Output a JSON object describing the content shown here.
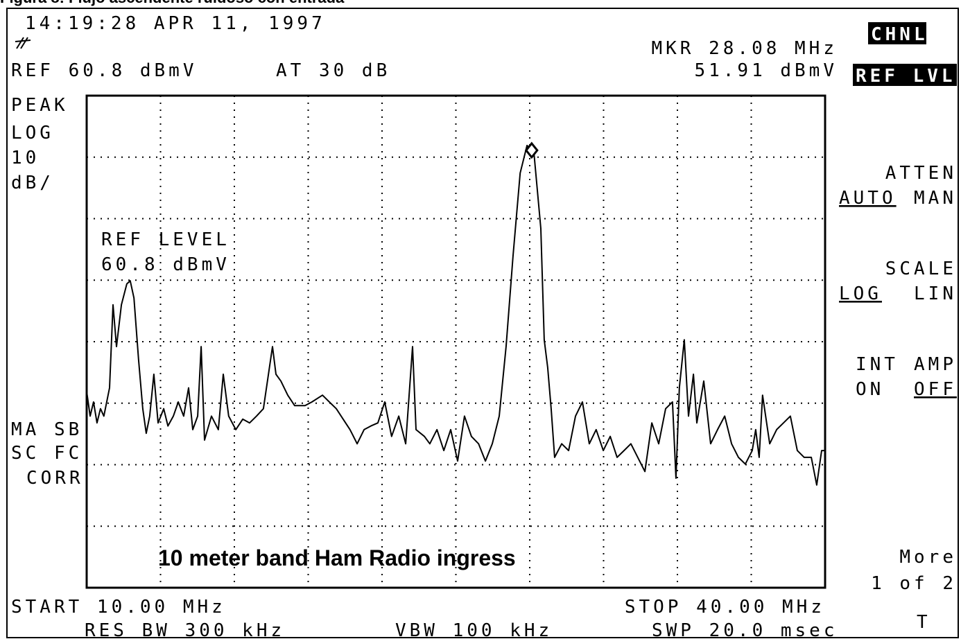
{
  "caption": "Figura 8: Flujo ascendente ruidoso con entrada",
  "screen": {
    "timestamp": "14:19:28 APR 11, 1997",
    "ref": "REF 60.8 dBmV",
    "atten": "AT 30 dB",
    "marker_freq": "MKR 28.08 MHz",
    "marker_level": "51.91 dBmV",
    "left_labels": [
      "PEAK",
      "LOG",
      "10",
      "dB/",
      "MA SB",
      "SC FC",
      "CORR"
    ],
    "softkeys": {
      "chnl": "CHNL",
      "ref_lvl": "REF LVL",
      "atten": "ATTEN",
      "auto": "AUTO",
      "man": "MAN",
      "scale": "SCALE",
      "log": "LOG",
      "lin": "LIN",
      "int": "INT",
      "amp": "AMP",
      "on": "ON",
      "off": "OFF",
      "more": "More",
      "page": "1 of 2",
      "t": "T"
    },
    "start": "START 10.00 MHz",
    "stop": "STOP 40.00 MHz",
    "rbw": "RES BW 300 kHz",
    "vbw": "VBW 100 kHz",
    "sweep": "SWP 20.0 msec"
  },
  "chart_data": {
    "type": "line",
    "color": "#000000",
    "grid": true,
    "xlim": [
      10,
      40
    ],
    "ylim": [
      -19.2,
      60.8
    ],
    "xticks": [
      10,
      13,
      16,
      19,
      22,
      25,
      28,
      31,
      34,
      37,
      40
    ],
    "yticks": [
      -19.2,
      -9.2,
      0.8,
      10.8,
      20.8,
      30.8,
      40.8,
      50.8,
      60.8
    ],
    "annotations": [
      "REF LEVEL",
      "60.8 dBmV",
      "10 meter band Ham Radio ingress"
    ],
    "marker": {
      "x": 28.08,
      "y": 51.91
    },
    "x": [
      10.0,
      10.14,
      10.28,
      10.42,
      10.56,
      10.7,
      10.93,
      11.07,
      11.21,
      11.41,
      11.63,
      11.77,
      11.92,
      12.11,
      12.28,
      12.42,
      12.56,
      12.73,
      12.9,
      13.13,
      13.3,
      13.52,
      13.72,
      13.94,
      14.14,
      14.31,
      14.51,
      14.65,
      14.79,
      15.07,
      15.35,
      15.55,
      15.77,
      16.06,
      16.34,
      16.62,
      16.9,
      17.18,
      17.55,
      17.69,
      17.89,
      18.17,
      18.45,
      18.87,
      19.15,
      19.58,
      19.86,
      20.14,
      20.42,
      20.7,
      20.99,
      21.27,
      21.55,
      21.83,
      22.11,
      22.39,
      22.68,
      22.96,
      23.24,
      23.38,
      23.72,
      23.94,
      24.23,
      24.51,
      24.79,
      25.07,
      25.35,
      25.63,
      25.92,
      26.2,
      26.48,
      26.76,
      27.04,
      27.32,
      27.61,
      27.89,
      28.08,
      28.17,
      28.45,
      28.59,
      28.73,
      28.87,
      29.01,
      29.3,
      29.58,
      29.86,
      30.14,
      30.42,
      30.7,
      30.99,
      31.27,
      31.55,
      31.83,
      32.11,
      32.39,
      32.68,
      32.96,
      33.24,
      33.52,
      33.8,
      33.94,
      34.08,
      34.28,
      34.45,
      34.65,
      34.79,
      35.07,
      35.35,
      35.63,
      35.92,
      36.2,
      36.48,
      36.76,
      37.04,
      37.18,
      37.32,
      37.46,
      37.75,
      38.03,
      38.31,
      38.59,
      38.87,
      39.15,
      39.44,
      39.66,
      39.86,
      40.0
    ],
    "values": [
      12.7,
      8.7,
      11.0,
      7.6,
      9.9,
      8.7,
      13.3,
      26.8,
      20.0,
      26.8,
      30.2,
      30.7,
      27.9,
      17.8,
      9.9,
      5.9,
      8.7,
      15.5,
      7.6,
      9.9,
      7.1,
      8.7,
      11.0,
      8.7,
      13.3,
      6.5,
      8.7,
      20.0,
      4.8,
      8.7,
      6.5,
      15.5,
      8.7,
      6.5,
      8.2,
      7.6,
      8.7,
      9.9,
      20.0,
      15.5,
      14.4,
      12.1,
      10.4,
      10.4,
      11.0,
      12.1,
      11.0,
      9.9,
      8.2,
      6.5,
      4.2,
      6.5,
      7.1,
      7.6,
      11.0,
      5.4,
      8.7,
      4.2,
      20.0,
      6.5,
      5.4,
      4.2,
      6.5,
      3.1,
      6.5,
      1.4,
      8.7,
      5.4,
      4.2,
      1.4,
      4.2,
      8.7,
      20.0,
      34.7,
      48.2,
      52.7,
      51.91,
      51.6,
      39.2,
      21.1,
      16.6,
      9.9,
      2.0,
      4.2,
      3.1,
      8.7,
      11.0,
      4.2,
      6.5,
      3.1,
      5.4,
      2.0,
      3.1,
      4.2,
      2.0,
      -0.3,
      7.6,
      4.2,
      9.9,
      11.0,
      -1.4,
      13.3,
      21.1,
      8.7,
      15.5,
      7.6,
      14.4,
      4.2,
      6.5,
      8.7,
      4.2,
      2.0,
      0.9,
      3.1,
      6.5,
      2.0,
      12.1,
      4.2,
      6.5,
      7.6,
      8.7,
      3.1,
      2.0,
      2.0,
      -2.5,
      3.1,
      3.1
    ]
  }
}
